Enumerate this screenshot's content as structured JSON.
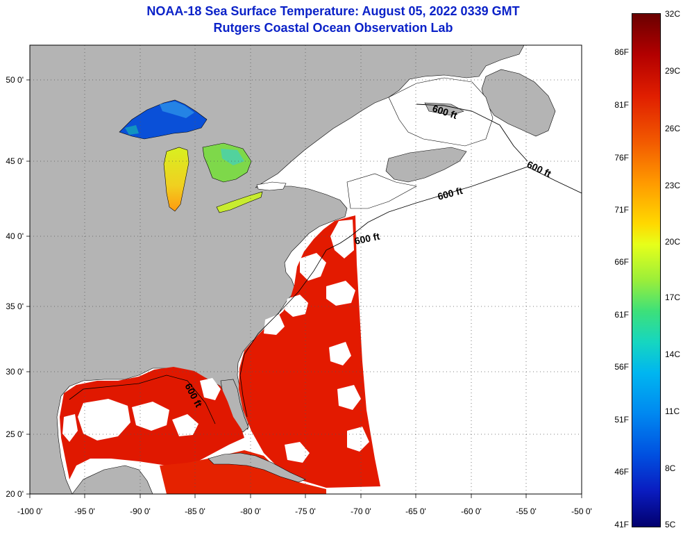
{
  "title": "NOAA-18 Sea Surface Temperature:  August 05, 2022 0339 GMT",
  "subtitle": "Rutgers Coastal Ocean Observation Lab",
  "map": {
    "lat_labels": [
      "50 0'",
      "45 0'",
      "40 0'",
      "35 0'",
      "30 0'",
      "25 0'",
      "20 0'"
    ],
    "lon_labels": [
      "-100 0'",
      "-95 0'",
      "-90 0'",
      "-85 0'",
      "-80 0'",
      "-75 0'",
      "-70 0'",
      "-65 0'",
      "-60 0'",
      "-55 0'",
      "-50 0'"
    ],
    "isobath_label": "600 ft",
    "colors": {
      "land": "#b4b4b4",
      "ocean_no_data": "#ffffff",
      "sst_warm": "#e31a00",
      "sst_lake_cool": "#0a50d8",
      "sst_lake_mid": "#b8e830",
      "grid": "#555555"
    }
  },
  "colorbar": {
    "fahrenheit_labels": [
      "86F",
      "81F",
      "76F",
      "71F",
      "66F",
      "61F",
      "56F",
      "51F",
      "46F",
      "41F"
    ],
    "celsius_labels": [
      "32C",
      "29C",
      "26C",
      "23C",
      "20C",
      "17C",
      "14C",
      "11C",
      "8C",
      "5C"
    ]
  }
}
